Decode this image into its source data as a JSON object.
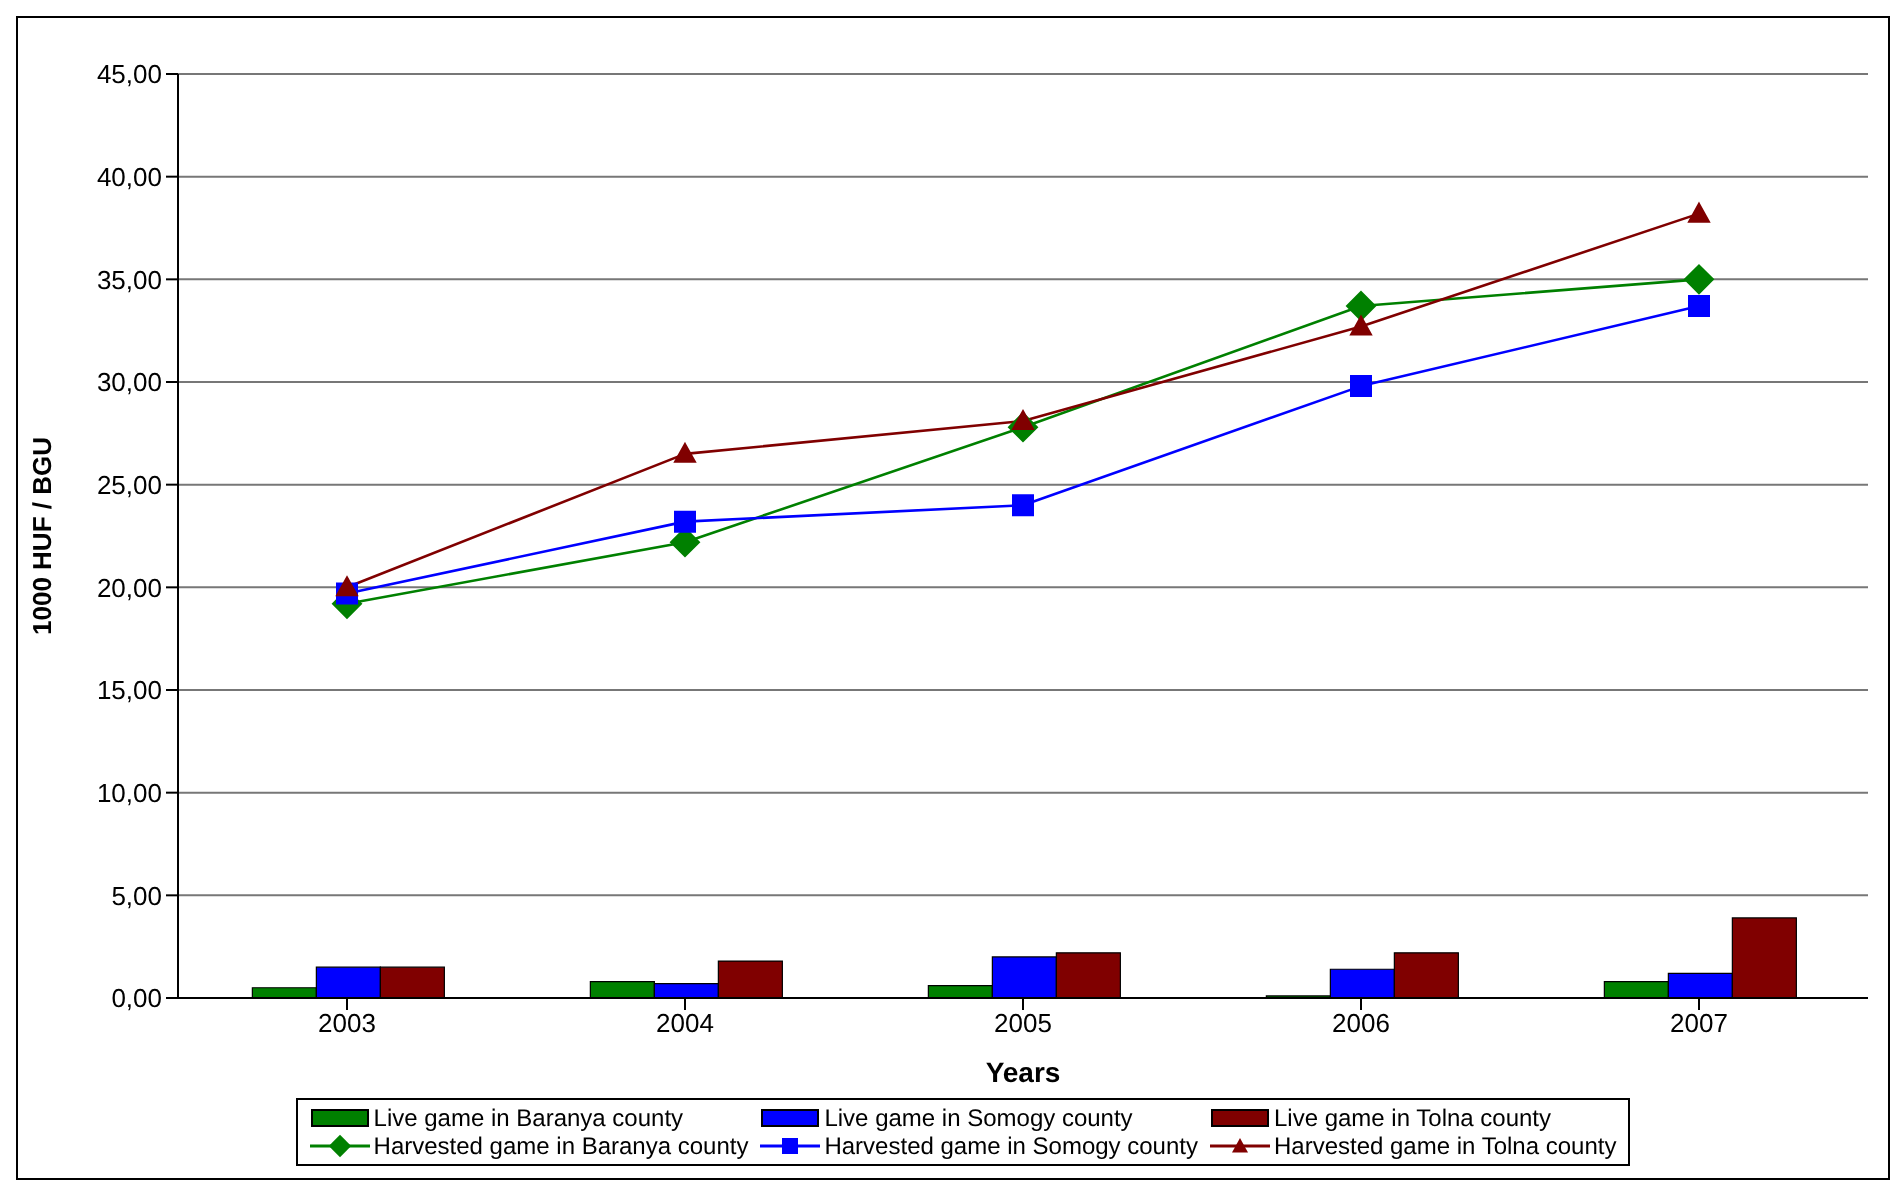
{
  "chart_data": {
    "type": "bar",
    "xlabel": "Years",
    "ylabel": "1000 HUF / BGU",
    "categories": [
      "2003",
      "2004",
      "2005",
      "2006",
      "2007"
    ],
    "ylim": [
      0,
      45
    ],
    "yticks": [
      {
        "value": 0,
        "label": "0,00"
      },
      {
        "value": 5,
        "label": "5,00"
      },
      {
        "value": 10,
        "label": "10,00"
      },
      {
        "value": 15,
        "label": "15,00"
      },
      {
        "value": 20,
        "label": "20,00"
      },
      {
        "value": 25,
        "label": "25,00"
      },
      {
        "value": 30,
        "label": "30,00"
      },
      {
        "value": 35,
        "label": "35,00"
      },
      {
        "value": 40,
        "label": "40,00"
      },
      {
        "value": 45,
        "label": "45,00"
      }
    ],
    "grid": "y",
    "legend": "bottom",
    "series": [
      {
        "name": "Live game in Baranya county",
        "color": "#008000",
        "values": [
          0.5,
          0.8,
          0.6,
          0.1,
          0.8
        ]
      },
      {
        "name": "Live game in Somogy county",
        "color": "#0000ff",
        "values": [
          1.5,
          0.7,
          2.0,
          1.4,
          1.2
        ]
      },
      {
        "name": "Live game in Tolna county",
        "color": "#800000",
        "values": [
          1.5,
          1.8,
          2.2,
          2.2,
          3.9
        ]
      },
      {
        "name": "Harvested game in Baranya county",
        "type": "line",
        "marker": "diamond",
        "color": "#008000",
        "values": [
          19.2,
          22.2,
          27.8,
          33.7,
          35.0
        ]
      },
      {
        "name": "Harvested game in Somogy county",
        "type": "line",
        "marker": "square",
        "color": "#0000ff",
        "values": [
          19.7,
          23.2,
          24.0,
          29.8,
          33.7
        ]
      },
      {
        "name": "Harvested game in Tolna county",
        "type": "line",
        "marker": "triangle",
        "color": "#800000",
        "values": [
          20.0,
          26.5,
          28.1,
          32.7,
          38.2
        ]
      }
    ]
  }
}
